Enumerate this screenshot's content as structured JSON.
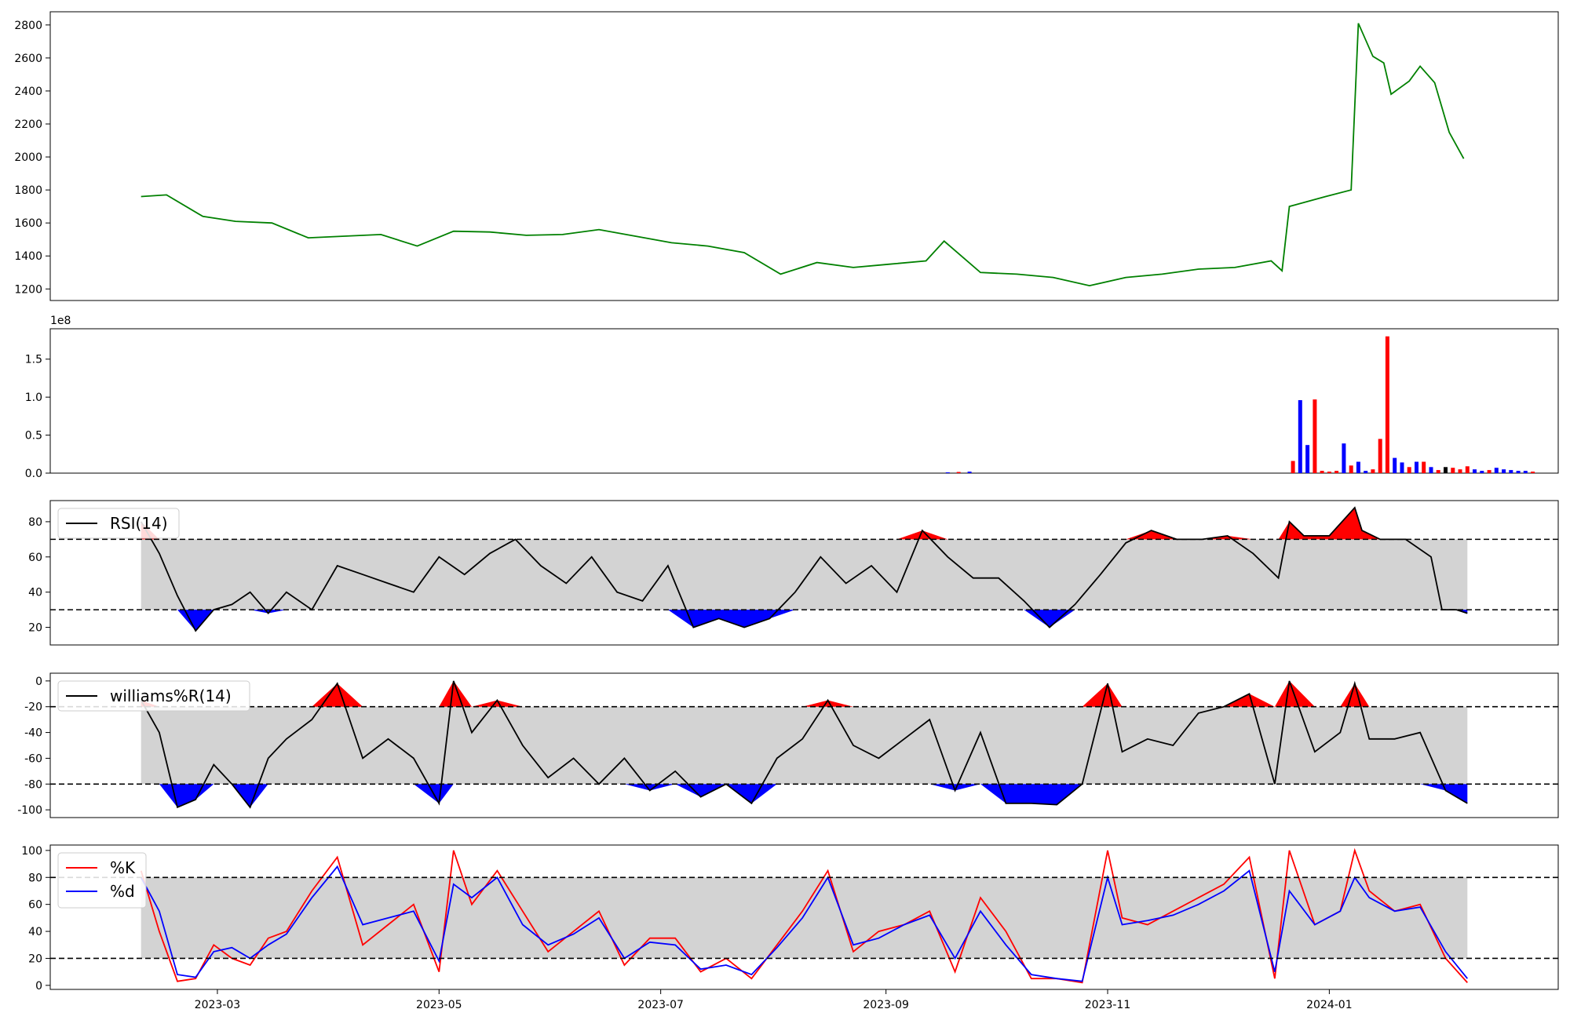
{
  "chart_data": [
    {
      "type": "line",
      "panel": "price",
      "color": "#008000",
      "ylim": [
        1130,
        2880
      ],
      "yticks": [
        1200,
        1400,
        1600,
        1800,
        2000,
        2200,
        2400,
        2600,
        2800
      ],
      "x": [
        "2023-02-08",
        "2023-02-15",
        "2023-02-25",
        "2023-03-06",
        "2023-03-16",
        "2023-03-26",
        "2023-04-05",
        "2023-04-15",
        "2023-04-25",
        "2023-05-05",
        "2023-05-15",
        "2023-05-25",
        "2023-06-04",
        "2023-06-14",
        "2023-06-24",
        "2023-07-04",
        "2023-07-14",
        "2023-07-24",
        "2023-08-03",
        "2023-08-13",
        "2023-08-23",
        "2023-09-02",
        "2023-09-12",
        "2023-09-17",
        "2023-09-27",
        "2023-10-07",
        "2023-10-17",
        "2023-10-27",
        "2023-11-06",
        "2023-11-16",
        "2023-11-26",
        "2023-12-06",
        "2023-12-16",
        "2023-12-19",
        "2023-12-21",
        "2023-12-31",
        "2024-01-07",
        "2024-01-09",
        "2024-01-13",
        "2024-01-16",
        "2024-01-18",
        "2024-01-23",
        "2024-01-26",
        "2024-01-30",
        "2024-02-03",
        "2024-02-07"
      ],
      "y": [
        1760,
        1770,
        1640,
        1610,
        1600,
        1510,
        1520,
        1530,
        1460,
        1550,
        1545,
        1525,
        1530,
        1560,
        1520,
        1480,
        1460,
        1420,
        1290,
        1360,
        1330,
        1350,
        1370,
        1490,
        1300,
        1290,
        1270,
        1220,
        1270,
        1290,
        1320,
        1330,
        1370,
        1310,
        1700,
        1760,
        1800,
        2810,
        2610,
        2570,
        2380,
        2460,
        2550,
        2450,
        2150,
        1990
      ]
    },
    {
      "type": "bar",
      "panel": "volume",
      "multiplier_label": "1e8",
      "ylim": [
        0,
        1.9
      ],
      "yticks": [
        "0.0",
        "0.5",
        "1.0",
        "1.5"
      ],
      "bars": [
        {
          "x": "2023-09-18",
          "v": 0.01,
          "c": "#0000ff"
        },
        {
          "x": "2023-09-21",
          "v": 0.015,
          "c": "#ff0000"
        },
        {
          "x": "2023-09-24",
          "v": 0.02,
          "c": "#0000ff"
        },
        {
          "x": "2023-12-22",
          "v": 0.16,
          "c": "#ff0000"
        },
        {
          "x": "2023-12-24",
          "v": 0.96,
          "c": "#0000ff"
        },
        {
          "x": "2023-12-26",
          "v": 0.37,
          "c": "#0000ff"
        },
        {
          "x": "2023-12-28",
          "v": 0.97,
          "c": "#ff0000"
        },
        {
          "x": "2023-12-30",
          "v": 0.03,
          "c": "#ff0000"
        },
        {
          "x": "2024-01-01",
          "v": 0.02,
          "c": "#ff0000"
        },
        {
          "x": "2024-01-03",
          "v": 0.03,
          "c": "#ff0000"
        },
        {
          "x": "2024-01-05",
          "v": 0.39,
          "c": "#0000ff"
        },
        {
          "x": "2024-01-07",
          "v": 0.1,
          "c": "#ff0000"
        },
        {
          "x": "2024-01-09",
          "v": 0.15,
          "c": "#0000ff"
        },
        {
          "x": "2024-01-11",
          "v": 0.03,
          "c": "#0000ff"
        },
        {
          "x": "2024-01-13",
          "v": 0.05,
          "c": "#ff0000"
        },
        {
          "x": "2024-01-15",
          "v": 0.45,
          "c": "#ff0000"
        },
        {
          "x": "2024-01-17",
          "v": 1.8,
          "c": "#ff0000"
        },
        {
          "x": "2024-01-19",
          "v": 0.2,
          "c": "#0000ff"
        },
        {
          "x": "2024-01-21",
          "v": 0.14,
          "c": "#0000ff"
        },
        {
          "x": "2024-01-23",
          "v": 0.08,
          "c": "#ff0000"
        },
        {
          "x": "2024-01-25",
          "v": 0.15,
          "c": "#0000ff"
        },
        {
          "x": "2024-01-27",
          "v": 0.15,
          "c": "#ff0000"
        },
        {
          "x": "2024-01-29",
          "v": 0.08,
          "c": "#0000ff"
        },
        {
          "x": "2024-01-31",
          "v": 0.04,
          "c": "#ff0000"
        },
        {
          "x": "2024-02-02",
          "v": 0.08,
          "c": "#000000"
        },
        {
          "x": "2024-02-04",
          "v": 0.07,
          "c": "#ff0000"
        },
        {
          "x": "2024-02-06",
          "v": 0.05,
          "c": "#ff0000"
        },
        {
          "x": "2024-02-08",
          "v": 0.09,
          "c": "#ff0000"
        },
        {
          "x": "2024-02-10",
          "v": 0.05,
          "c": "#0000ff"
        },
        {
          "x": "2024-02-12",
          "v": 0.03,
          "c": "#0000ff"
        },
        {
          "x": "2024-02-14",
          "v": 0.04,
          "c": "#ff0000"
        },
        {
          "x": "2024-02-16",
          "v": 0.07,
          "c": "#0000ff"
        },
        {
          "x": "2024-02-18",
          "v": 0.05,
          "c": "#0000ff"
        },
        {
          "x": "2024-02-20",
          "v": 0.04,
          "c": "#0000ff"
        },
        {
          "x": "2024-02-22",
          "v": 0.03,
          "c": "#0000ff"
        },
        {
          "x": "2024-02-24",
          "v": 0.03,
          "c": "#0000ff"
        },
        {
          "x": "2024-02-26",
          "v": 0.02,
          "c": "#ff0000"
        }
      ]
    },
    {
      "type": "line",
      "panel": "rsi",
      "legend": [
        "RSI(14)"
      ],
      "ylim": [
        10,
        92
      ],
      "yticks": [
        20,
        40,
        60,
        80
      ],
      "band": [
        30,
        70
      ],
      "x": [
        "2023-02-08",
        "2023-02-13",
        "2023-02-18",
        "2023-02-23",
        "2023-02-28",
        "2023-03-05",
        "2023-03-10",
        "2023-03-15",
        "2023-03-20",
        "2023-03-27",
        "2023-04-03",
        "2023-04-10",
        "2023-04-17",
        "2023-04-24",
        "2023-05-01",
        "2023-05-08",
        "2023-05-15",
        "2023-05-22",
        "2023-05-29",
        "2023-06-05",
        "2023-06-12",
        "2023-06-19",
        "2023-06-26",
        "2023-07-03",
        "2023-07-10",
        "2023-07-17",
        "2023-07-24",
        "2023-07-31",
        "2023-08-07",
        "2023-08-14",
        "2023-08-21",
        "2023-08-28",
        "2023-09-04",
        "2023-09-11",
        "2023-09-18",
        "2023-09-25",
        "2023-10-02",
        "2023-10-09",
        "2023-10-16",
        "2023-10-23",
        "2023-10-30",
        "2023-11-06",
        "2023-11-13",
        "2023-11-20",
        "2023-11-27",
        "2023-12-04",
        "2023-12-11",
        "2023-12-18",
        "2023-12-21",
        "2023-12-25",
        "2024-01-01",
        "2024-01-08",
        "2024-01-10",
        "2024-01-15",
        "2024-01-22",
        "2024-01-29",
        "2024-02-01",
        "2024-02-05",
        "2024-02-08"
      ],
      "y": [
        80,
        62,
        38,
        18,
        30,
        33,
        40,
        28,
        40,
        30,
        55,
        50,
        45,
        40,
        60,
        50,
        62,
        70,
        55,
        45,
        60,
        40,
        35,
        55,
        20,
        25,
        20,
        25,
        40,
        60,
        45,
        55,
        40,
        75,
        60,
        48,
        48,
        35,
        20,
        33,
        50,
        68,
        75,
        70,
        70,
        72,
        62,
        48,
        80,
        72,
        72,
        88,
        75,
        70,
        70,
        60,
        30,
        30,
        28
      ]
    },
    {
      "type": "line",
      "panel": "williams",
      "legend": [
        "williams%R(14)"
      ],
      "ylim": [
        -106,
        6
      ],
      "yticks": [
        0,
        -20,
        -40,
        -60,
        -80,
        -100
      ],
      "band": [
        -80,
        -20
      ],
      "x": [
        "2023-02-08",
        "2023-02-13",
        "2023-02-18",
        "2023-02-23",
        "2023-02-28",
        "2023-03-05",
        "2023-03-10",
        "2023-03-15",
        "2023-03-20",
        "2023-03-27",
        "2023-04-03",
        "2023-04-10",
        "2023-04-17",
        "2023-04-24",
        "2023-05-01",
        "2023-05-05",
        "2023-05-10",
        "2023-05-17",
        "2023-05-24",
        "2023-05-31",
        "2023-06-07",
        "2023-06-14",
        "2023-06-21",
        "2023-06-28",
        "2023-07-05",
        "2023-07-12",
        "2023-07-19",
        "2023-07-26",
        "2023-08-02",
        "2023-08-09",
        "2023-08-16",
        "2023-08-23",
        "2023-08-30",
        "2023-09-06",
        "2023-09-13",
        "2023-09-20",
        "2023-09-27",
        "2023-10-04",
        "2023-10-11",
        "2023-10-18",
        "2023-10-25",
        "2023-11-01",
        "2023-11-05",
        "2023-11-12",
        "2023-11-19",
        "2023-11-26",
        "2023-12-03",
        "2023-12-10",
        "2023-12-17",
        "2023-12-21",
        "2023-12-28",
        "2024-01-04",
        "2024-01-08",
        "2024-01-12",
        "2024-01-19",
        "2024-01-26",
        "2024-02-02",
        "2024-02-08"
      ],
      "y": [
        -15,
        -40,
        -98,
        -92,
        -65,
        -80,
        -98,
        -60,
        -45,
        -30,
        -2,
        -60,
        -45,
        -60,
        -95,
        0,
        -40,
        -15,
        -50,
        -75,
        -60,
        -80,
        -60,
        -85,
        -70,
        -90,
        -80,
        -95,
        -60,
        -45,
        -15,
        -50,
        -60,
        -45,
        -30,
        -85,
        -40,
        -95,
        -95,
        -96,
        -80,
        -2,
        -55,
        -45,
        -50,
        -25,
        -20,
        -10,
        -80,
        0,
        -55,
        -40,
        -2,
        -45,
        -45,
        -40,
        -85,
        -95
      ]
    },
    {
      "type": "line",
      "panel": "stochastic",
      "ylim": [
        -3,
        104
      ],
      "yticks": [
        0,
        20,
        40,
        60,
        80,
        100
      ],
      "band": [
        20,
        80
      ],
      "xticks": [
        "2023-03",
        "2023-05",
        "2023-07",
        "2023-09",
        "2023-11",
        "2024-01"
      ],
      "x": [
        "2023-02-08",
        "2023-02-13",
        "2023-02-18",
        "2023-02-23",
        "2023-02-28",
        "2023-03-05",
        "2023-03-10",
        "2023-03-15",
        "2023-03-20",
        "2023-03-27",
        "2023-04-03",
        "2023-04-10",
        "2023-04-17",
        "2023-04-24",
        "2023-05-01",
        "2023-05-05",
        "2023-05-10",
        "2023-05-17",
        "2023-05-24",
        "2023-05-31",
        "2023-06-07",
        "2023-06-14",
        "2023-06-21",
        "2023-06-28",
        "2023-07-05",
        "2023-07-12",
        "2023-07-19",
        "2023-07-26",
        "2023-08-02",
        "2023-08-09",
        "2023-08-16",
        "2023-08-23",
        "2023-08-30",
        "2023-09-06",
        "2023-09-13",
        "2023-09-20",
        "2023-09-27",
        "2023-10-04",
        "2023-10-11",
        "2023-10-18",
        "2023-10-25",
        "2023-11-01",
        "2023-11-05",
        "2023-11-12",
        "2023-11-19",
        "2023-11-26",
        "2023-12-03",
        "2023-12-10",
        "2023-12-17",
        "2023-12-21",
        "2023-12-28",
        "2024-01-04",
        "2024-01-08",
        "2024-01-12",
        "2024-01-19",
        "2024-01-26",
        "2024-02-02",
        "2024-02-08"
      ],
      "series": [
        {
          "name": "%K",
          "color": "#ff0000",
          "values": [
            85,
            40,
            3,
            5,
            30,
            20,
            15,
            35,
            40,
            70,
            95,
            30,
            45,
            60,
            10,
            100,
            60,
            85,
            55,
            25,
            40,
            55,
            15,
            35,
            35,
            10,
            20,
            5,
            30,
            55,
            85,
            25,
            40,
            45,
            55,
            10,
            65,
            40,
            5,
            5,
            2,
            100,
            50,
            45,
            55,
            65,
            75,
            95,
            5,
            100,
            45,
            55,
            100,
            70,
            55,
            60,
            20,
            2
          ]
        },
        {
          "name": "%d",
          "color": "#0000ff",
          "values": [
            80,
            55,
            8,
            6,
            25,
            28,
            20,
            30,
            38,
            65,
            88,
            45,
            50,
            55,
            18,
            75,
            65,
            80,
            45,
            30,
            38,
            50,
            20,
            32,
            30,
            12,
            15,
            8,
            28,
            50,
            80,
            30,
            35,
            45,
            52,
            20,
            55,
            30,
            8,
            5,
            3,
            80,
            45,
            48,
            52,
            60,
            70,
            85,
            10,
            70,
            45,
            55,
            80,
            65,
            55,
            58,
            25,
            5
          ]
        }
      ]
    }
  ]
}
